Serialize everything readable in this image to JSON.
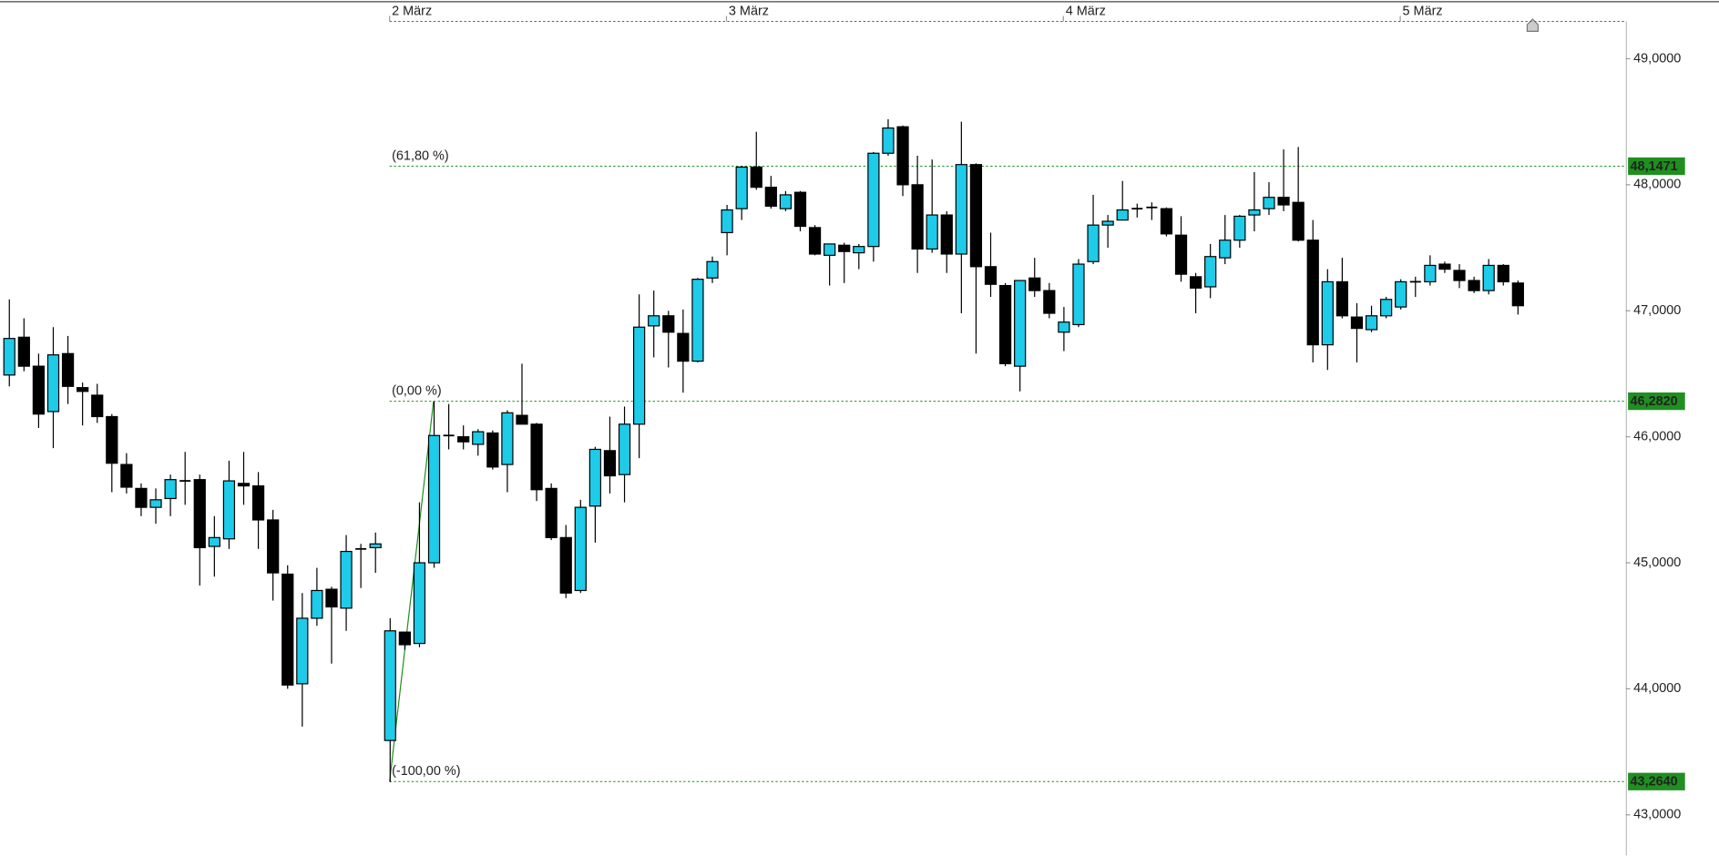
{
  "chart_data": {
    "type": "candlestick",
    "up_color": "#1ecbe8",
    "down_color": "#000000",
    "fib_color": "#1f8f1f",
    "xlim": [
      -0.6,
      110.4
    ],
    "xticks": [
      {
        "value": 26,
        "label": "2 März"
      },
      {
        "value": 49,
        "label": "3 März"
      },
      {
        "value": 72,
        "label": "4 März"
      },
      {
        "value": 95,
        "label": "5 März"
      }
    ],
    "ylim": [
      42.678,
      49.296
    ],
    "yticks": [
      {
        "value": 43,
        "label": "43,0000"
      },
      {
        "value": 44,
        "label": "44,0000"
      },
      {
        "value": 45,
        "label": "45,0000"
      },
      {
        "value": 46,
        "label": "46,0000"
      },
      {
        "value": 47,
        "label": "47,0000"
      },
      {
        "value": 48,
        "label": "48,0000"
      },
      {
        "value": 49,
        "label": "49,0000"
      }
    ],
    "fib_from": 26,
    "fib_to": 29,
    "fib_levels": [
      {
        "name": "(61,80 %)",
        "value": 48.1471,
        "label": "48,1471"
      },
      {
        "name": "(0,00 %)",
        "value": 46.282,
        "label": "46,2820"
      },
      {
        "name": "(-100,00 %)",
        "value": 43.264,
        "label": "43,2640"
      }
    ],
    "open": [
      46.49,
      46.79,
      46.56,
      46.2,
      46.66,
      46.39,
      46.33,
      46.16,
      45.78,
      45.59,
      45.44,
      45.51,
      45.65,
      45.66,
      45.13,
      45.19,
      45.63,
      45.61,
      45.34,
      44.91,
      44.04,
      44.56,
      44.79,
      44.64,
      45.11,
      45.12,
      43.59,
      44.45,
      44.36,
      45.0,
      46.01,
      46.0,
      45.94,
      46.03,
      45.78,
      46.17,
      46.1,
      45.59,
      45.2,
      44.78,
      45.45,
      45.89,
      45.7,
      46.1,
      46.88,
      46.96,
      46.82,
      46.6,
      47.26,
      47.62,
      47.81,
      48.14,
      47.98,
      47.81,
      47.94,
      47.66,
      47.44,
      47.52,
      47.46,
      47.51,
      48.25,
      48.46,
      48.0,
      47.49,
      47.76,
      47.45,
      48.16,
      47.35,
      47.2,
      46.56,
      47.26,
      47.16,
      46.83,
      46.89,
      47.39,
      47.68,
      47.72,
      47.81,
      47.82,
      47.81,
      47.6,
      47.27,
      47.19,
      47.42,
      47.56,
      47.76,
      47.81,
      47.9,
      47.86,
      47.56,
      46.73,
      47.23,
      46.95,
      46.85,
      46.96,
      47.03,
      47.23,
      47.23,
      47.37,
      47.32,
      47.24,
      47.16,
      47.36,
      47.22
    ],
    "high": [
      47.09,
      46.94,
      46.66,
      46.87,
      46.8,
      46.43,
      46.42,
      46.18,
      45.87,
      45.63,
      45.59,
      45.7,
      45.88,
      45.7,
      45.37,
      45.81,
      45.88,
      45.72,
      45.42,
      44.98,
      44.76,
      44.96,
      44.81,
      45.22,
      45.15,
      45.24,
      44.56,
      44.45,
      45.48,
      46.28,
      46.26,
      46.09,
      46.06,
      46.05,
      46.21,
      46.58,
      46.11,
      45.63,
      45.3,
      45.5,
      45.92,
      46.16,
      46.24,
      47.13,
      47.16,
      47.0,
      47.01,
      47.26,
      47.43,
      47.84,
      48.15,
      48.42,
      48.07,
      47.95,
      47.95,
      47.68,
      47.53,
      47.54,
      47.53,
      48.26,
      48.52,
      48.47,
      48.23,
      48.2,
      47.79,
      48.5,
      48.17,
      47.62,
      47.22,
      47.24,
      47.42,
      47.22,
      47.03,
      47.41,
      47.92,
      47.76,
      48.03,
      47.85,
      47.86,
      47.82,
      47.75,
      47.3,
      47.53,
      47.76,
      47.76,
      48.1,
      48.02,
      48.28,
      48.3,
      47.72,
      47.33,
      47.42,
      47.06,
      47.04,
      47.11,
      47.25,
      47.27,
      47.44,
      47.39,
      47.37,
      47.27,
      47.41,
      47.37,
      47.24
    ],
    "low": [
      46.4,
      46.52,
      46.07,
      45.91,
      46.26,
      46.09,
      46.11,
      45.56,
      45.55,
      45.37,
      45.31,
      45.37,
      45.46,
      44.82,
      44.89,
      45.11,
      45.46,
      45.11,
      44.7,
      44.0,
      43.7,
      44.5,
      44.2,
      44.46,
      44.8,
      44.92,
      43.26,
      44.31,
      44.33,
      44.96,
      45.9,
      45.9,
      45.85,
      45.74,
      45.56,
      46.1,
      45.49,
      45.18,
      44.72,
      44.76,
      45.16,
      45.55,
      45.48,
      45.83,
      46.63,
      46.55,
      46.35,
      46.59,
      47.22,
      47.44,
      47.72,
      47.96,
      47.81,
      47.79,
      47.63,
      47.44,
      47.2,
      47.22,
      47.33,
      47.39,
      48.23,
      47.91,
      47.3,
      47.46,
      47.3,
      46.98,
      46.66,
      47.11,
      46.56,
      46.36,
      47.11,
      46.94,
      46.68,
      46.87,
      47.37,
      47.5,
      47.72,
      47.74,
      47.72,
      47.59,
      47.23,
      46.98,
      47.1,
      47.37,
      47.5,
      47.63,
      47.76,
      47.79,
      47.55,
      46.59,
      46.53,
      46.94,
      46.59,
      46.83,
      46.94,
      47.01,
      47.11,
      47.2,
      47.3,
      47.18,
      47.14,
      47.13,
      47.2,
      46.97
    ],
    "close": [
      46.78,
      46.56,
      46.18,
      46.65,
      46.4,
      46.36,
      46.16,
      45.79,
      45.6,
      45.44,
      45.5,
      45.66,
      45.65,
      45.12,
      45.2,
      45.65,
      45.61,
      45.34,
      44.92,
      44.03,
      44.56,
      44.78,
      44.65,
      45.09,
      45.11,
      45.15,
      44.46,
      44.35,
      45.0,
      46.01,
      46.01,
      45.96,
      46.04,
      45.76,
      46.19,
      46.1,
      45.58,
      45.2,
      44.76,
      45.44,
      45.9,
      45.69,
      46.1,
      46.87,
      46.96,
      46.83,
      46.6,
      47.25,
      47.39,
      47.8,
      48.14,
      47.98,
      47.83,
      47.92,
      47.67,
      47.45,
      47.53,
      47.47,
      47.51,
      48.25,
      48.45,
      48.0,
      47.49,
      47.76,
      47.45,
      48.16,
      47.35,
      47.21,
      46.58,
      47.24,
      47.16,
      46.98,
      46.91,
      47.37,
      47.68,
      47.71,
      47.8,
      47.81,
      47.82,
      47.61,
      47.29,
      47.18,
      47.43,
      47.56,
      47.75,
      47.8,
      47.9,
      47.84,
      47.56,
      46.73,
      47.23,
      46.96,
      46.86,
      46.96,
      47.09,
      47.23,
      47.23,
      47.36,
      47.33,
      47.24,
      47.16,
      47.36,
      47.23,
      47.04
    ]
  }
}
